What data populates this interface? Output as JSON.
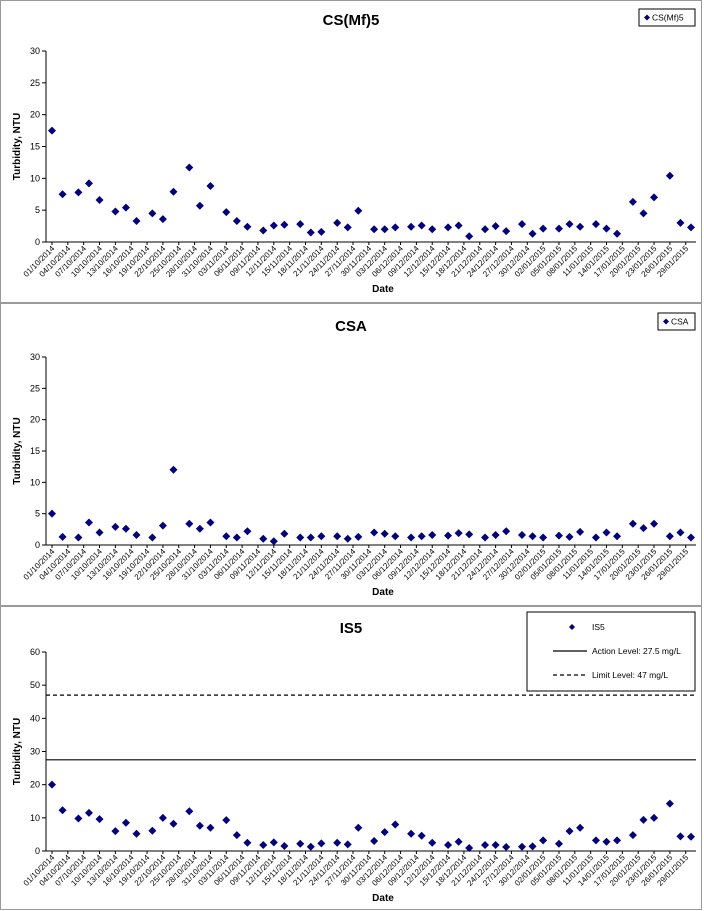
{
  "chart_data": [
    {
      "type": "scatter",
      "title": "CS(Mf)5",
      "xlabel": "Date",
      "ylabel": "Turbidity, NTU",
      "ylim": [
        0,
        30
      ],
      "yticks": [
        0,
        5,
        10,
        15,
        20,
        25,
        30
      ],
      "xlim": [
        "01/10/2014",
        "30/01/2015"
      ],
      "x_tick_labels": [
        "01/10/2014",
        "04/10/2014",
        "07/10/2014",
        "10/10/2014",
        "13/10/2014",
        "16/10/2014",
        "19/10/2014",
        "22/10/2014",
        "25/10/2014",
        "28/10/2014",
        "31/10/2014",
        "03/11/2014",
        "06/11/2014",
        "09/11/2014",
        "12/11/2014",
        "15/11/2014",
        "18/11/2014",
        "21/11/2014",
        "24/11/2014",
        "27/11/2014",
        "30/11/2014",
        "03/12/2014",
        "06/12/2014",
        "09/12/2014",
        "12/12/2014",
        "15/12/2014",
        "18/12/2014",
        "21/12/2014",
        "24/12/2014",
        "27/12/2014",
        "30/12/2014",
        "02/01/2015",
        "05/01/2015",
        "08/01/2015",
        "11/01/2015",
        "14/01/2015",
        "17/01/2015",
        "20/01/2015",
        "23/01/2015",
        "26/01/2015",
        "29/01/2015"
      ],
      "legend_position": "top-right",
      "series": [
        {
          "name": "CS(Mf)5",
          "color": "#000080",
          "marker": "diamond",
          "points": [
            [
              "01/10/2014",
              17.5
            ],
            [
              "03/10/2014",
              7.5
            ],
            [
              "06/10/2014",
              7.8
            ],
            [
              "08/10/2014",
              9.2
            ],
            [
              "10/10/2014",
              6.6
            ],
            [
              "13/10/2014",
              4.8
            ],
            [
              "15/10/2014",
              5.4
            ],
            [
              "17/10/2014",
              3.3
            ],
            [
              "20/10/2014",
              4.5
            ],
            [
              "22/10/2014",
              3.6
            ],
            [
              "24/10/2014",
              7.9
            ],
            [
              "27/10/2014",
              11.7
            ],
            [
              "29/10/2014",
              5.7
            ],
            [
              "31/10/2014",
              8.8
            ],
            [
              "03/11/2014",
              4.7
            ],
            [
              "05/11/2014",
              3.3
            ],
            [
              "07/11/2014",
              2.4
            ],
            [
              "10/11/2014",
              1.8
            ],
            [
              "12/11/2014",
              2.6
            ],
            [
              "14/11/2014",
              2.7
            ],
            [
              "17/11/2014",
              2.8
            ],
            [
              "19/11/2014",
              1.5
            ],
            [
              "21/11/2014",
              1.6
            ],
            [
              "24/11/2014",
              3.0
            ],
            [
              "26/11/2014",
              2.3
            ],
            [
              "28/11/2014",
              4.9
            ],
            [
              "01/12/2014",
              2.0
            ],
            [
              "03/12/2014",
              2.0
            ],
            [
              "05/12/2014",
              2.3
            ],
            [
              "08/12/2014",
              2.4
            ],
            [
              "10/12/2014",
              2.6
            ],
            [
              "12/12/2014",
              2.0
            ],
            [
              "15/12/2014",
              2.3
            ],
            [
              "17/12/2014",
              2.6
            ],
            [
              "19/12/2014",
              0.9
            ],
            [
              "22/12/2014",
              2.0
            ],
            [
              "24/12/2014",
              2.5
            ],
            [
              "26/12/2014",
              1.7
            ],
            [
              "29/12/2014",
              2.8
            ],
            [
              "31/12/2014",
              1.3
            ],
            [
              "02/01/2015",
              2.1
            ],
            [
              "05/01/2015",
              2.1
            ],
            [
              "07/01/2015",
              2.8
            ],
            [
              "09/01/2015",
              2.4
            ],
            [
              "12/01/2015",
              2.8
            ],
            [
              "14/01/2015",
              2.1
            ],
            [
              "16/01/2015",
              1.3
            ],
            [
              "19/01/2015",
              6.3
            ],
            [
              "21/01/2015",
              4.5
            ],
            [
              "23/01/2015",
              7.0
            ],
            [
              "26/01/2015",
              10.4
            ],
            [
              "28/01/2015",
              3.0
            ],
            [
              "30/01/2015",
              2.3
            ]
          ]
        }
      ]
    },
    {
      "type": "scatter",
      "title": "CSA",
      "xlabel": "Date",
      "ylabel": "Turbidity, NTU",
      "ylim": [
        0,
        30
      ],
      "yticks": [
        0,
        5,
        10,
        15,
        20,
        25,
        30
      ],
      "xlim": [
        "01/10/2014",
        "30/01/2015"
      ],
      "x_tick_labels": [
        "01/10/2014",
        "04/10/2014",
        "07/10/2014",
        "10/10/2014",
        "13/10/2014",
        "16/10/2014",
        "19/10/2014",
        "22/10/2014",
        "25/10/2014",
        "28/10/2014",
        "31/10/2014",
        "03/11/2014",
        "06/11/2014",
        "09/11/2014",
        "12/11/2014",
        "15/11/2014",
        "18/11/2014",
        "21/11/2014",
        "24/11/2014",
        "27/11/2014",
        "30/11/2014",
        "03/12/2014",
        "06/12/2014",
        "09/12/2014",
        "12/12/2014",
        "15/12/2014",
        "18/12/2014",
        "21/12/2014",
        "24/12/2014",
        "27/12/2014",
        "30/12/2014",
        "02/01/2015",
        "05/01/2015",
        "08/01/2015",
        "11/01/2015",
        "14/01/2015",
        "17/01/2015",
        "20/01/2015",
        "23/01/2015",
        "26/01/2015",
        "29/01/2015"
      ],
      "legend_position": "top-right",
      "series": [
        {
          "name": "CSA",
          "color": "#000080",
          "marker": "diamond",
          "points": [
            [
              "01/10/2014",
              5.0
            ],
            [
              "03/10/2014",
              1.3
            ],
            [
              "06/10/2014",
              1.2
            ],
            [
              "08/10/2014",
              3.6
            ],
            [
              "10/10/2014",
              2.0
            ],
            [
              "13/10/2014",
              2.9
            ],
            [
              "15/10/2014",
              2.6
            ],
            [
              "17/10/2014",
              1.6
            ],
            [
              "20/10/2014",
              1.2
            ],
            [
              "22/10/2014",
              3.1
            ],
            [
              "24/10/2014",
              12.0
            ],
            [
              "27/10/2014",
              3.4
            ],
            [
              "29/10/2014",
              2.6
            ],
            [
              "31/10/2014",
              3.6
            ],
            [
              "03/11/2014",
              1.4
            ],
            [
              "05/11/2014",
              1.2
            ],
            [
              "07/11/2014",
              2.2
            ],
            [
              "10/11/2014",
              1.0
            ],
            [
              "12/11/2014",
              0.6
            ],
            [
              "14/11/2014",
              1.8
            ],
            [
              "17/11/2014",
              1.2
            ],
            [
              "19/11/2014",
              1.2
            ],
            [
              "21/11/2014",
              1.4
            ],
            [
              "24/11/2014",
              1.4
            ],
            [
              "26/11/2014",
              1.0
            ],
            [
              "28/11/2014",
              1.3
            ],
            [
              "01/12/2014",
              2.0
            ],
            [
              "03/12/2014",
              1.8
            ],
            [
              "05/12/2014",
              1.4
            ],
            [
              "08/12/2014",
              1.2
            ],
            [
              "10/12/2014",
              1.4
            ],
            [
              "12/12/2014",
              1.6
            ],
            [
              "15/12/2014",
              1.5
            ],
            [
              "17/12/2014",
              1.9
            ],
            [
              "19/12/2014",
              1.7
            ],
            [
              "22/12/2014",
              1.2
            ],
            [
              "24/12/2014",
              1.6
            ],
            [
              "26/12/2014",
              2.2
            ],
            [
              "29/12/2014",
              1.6
            ],
            [
              "31/12/2014",
              1.4
            ],
            [
              "02/01/2015",
              1.2
            ],
            [
              "05/01/2015",
              1.5
            ],
            [
              "07/01/2015",
              1.3
            ],
            [
              "09/01/2015",
              2.1
            ],
            [
              "12/01/2015",
              1.2
            ],
            [
              "14/01/2015",
              2.0
            ],
            [
              "16/01/2015",
              1.4
            ],
            [
              "19/01/2015",
              3.4
            ],
            [
              "21/01/2015",
              2.7
            ],
            [
              "23/01/2015",
              3.4
            ],
            [
              "26/01/2015",
              1.4
            ],
            [
              "28/01/2015",
              2.0
            ],
            [
              "30/01/2015",
              1.2
            ]
          ]
        }
      ]
    },
    {
      "type": "scatter",
      "title": "IS5",
      "xlabel": "Date",
      "ylabel": "Turbidity, NTU",
      "ylim": [
        0,
        60
      ],
      "yticks": [
        0,
        10,
        20,
        30,
        40,
        50,
        60
      ],
      "xlim": [
        "01/10/2014",
        "30/01/2015"
      ],
      "x_tick_labels": [
        "01/10/2014",
        "04/10/2014",
        "07/10/2014",
        "10/10/2014",
        "13/10/2014",
        "16/10/2014",
        "19/10/2014",
        "22/10/2014",
        "25/10/2014",
        "28/10/2014",
        "31/10/2014",
        "03/11/2014",
        "06/11/2014",
        "09/11/2014",
        "12/11/2014",
        "15/11/2014",
        "18/11/2014",
        "21/11/2014",
        "24/11/2014",
        "27/11/2014",
        "30/11/2014",
        "03/12/2014",
        "06/12/2014",
        "09/12/2014",
        "12/12/2014",
        "15/12/2014",
        "18/12/2014",
        "21/12/2014",
        "24/12/2014",
        "27/12/2014",
        "30/12/2014",
        "02/01/2015",
        "05/01/2015",
        "08/01/2015",
        "11/01/2015",
        "14/01/2015",
        "17/01/2015",
        "20/01/2015",
        "23/01/2015",
        "26/01/2015",
        "29/01/2015"
      ],
      "legend_position": "top-right",
      "reference_lines": [
        {
          "name": "Action Level: 27.5 mg/L",
          "value": 27.5,
          "style": "solid"
        },
        {
          "name": "Limit Level: 47 mg/L",
          "value": 47,
          "style": "dashed"
        }
      ],
      "series": [
        {
          "name": "IS5",
          "color": "#000080",
          "marker": "diamond",
          "points": [
            [
              "01/10/2014",
              20.0
            ],
            [
              "03/10/2014",
              12.3
            ],
            [
              "06/10/2014",
              9.8
            ],
            [
              "08/10/2014",
              11.5
            ],
            [
              "10/10/2014",
              9.6
            ],
            [
              "13/10/2014",
              6.0
            ],
            [
              "15/10/2014",
              8.5
            ],
            [
              "17/10/2014",
              5.2
            ],
            [
              "20/10/2014",
              6.1
            ],
            [
              "22/10/2014",
              10.0
            ],
            [
              "24/10/2014",
              8.2
            ],
            [
              "27/10/2014",
              12.0
            ],
            [
              "29/10/2014",
              7.6
            ],
            [
              "31/10/2014",
              7.0
            ],
            [
              "03/11/2014",
              9.3
            ],
            [
              "05/11/2014",
              4.8
            ],
            [
              "07/11/2014",
              2.5
            ],
            [
              "10/11/2014",
              1.8
            ],
            [
              "12/11/2014",
              2.6
            ],
            [
              "14/11/2014",
              1.5
            ],
            [
              "17/11/2014",
              2.2
            ],
            [
              "19/11/2014",
              1.3
            ],
            [
              "21/11/2014",
              2.3
            ],
            [
              "24/11/2014",
              2.5
            ],
            [
              "26/11/2014",
              2.0
            ],
            [
              "28/11/2014",
              7.0
            ],
            [
              "01/12/2014",
              3.0
            ],
            [
              "03/12/2014",
              5.7
            ],
            [
              "05/12/2014",
              8.0
            ],
            [
              "08/12/2014",
              5.2
            ],
            [
              "10/12/2014",
              4.6
            ],
            [
              "12/12/2014",
              2.5
            ],
            [
              "15/12/2014",
              1.8
            ],
            [
              "17/12/2014",
              2.8
            ],
            [
              "19/12/2014",
              0.9
            ],
            [
              "22/12/2014",
              1.8
            ],
            [
              "24/12/2014",
              1.8
            ],
            [
              "26/12/2014",
              1.2
            ],
            [
              "29/12/2014",
              1.3
            ],
            [
              "31/12/2014",
              1.4
            ],
            [
              "02/01/2015",
              3.2
            ],
            [
              "05/01/2015",
              2.2
            ],
            [
              "07/01/2015",
              6.0
            ],
            [
              "09/01/2015",
              7.0
            ],
            [
              "12/01/2015",
              3.2
            ],
            [
              "14/01/2015",
              2.8
            ],
            [
              "16/01/2015",
              3.2
            ],
            [
              "19/01/2015",
              4.8
            ],
            [
              "21/01/2015",
              9.4
            ],
            [
              "23/01/2015",
              10.0
            ],
            [
              "26/01/2015",
              14.3
            ],
            [
              "28/01/2015",
              4.4
            ],
            [
              "30/01/2015",
              4.3
            ]
          ]
        }
      ]
    }
  ]
}
